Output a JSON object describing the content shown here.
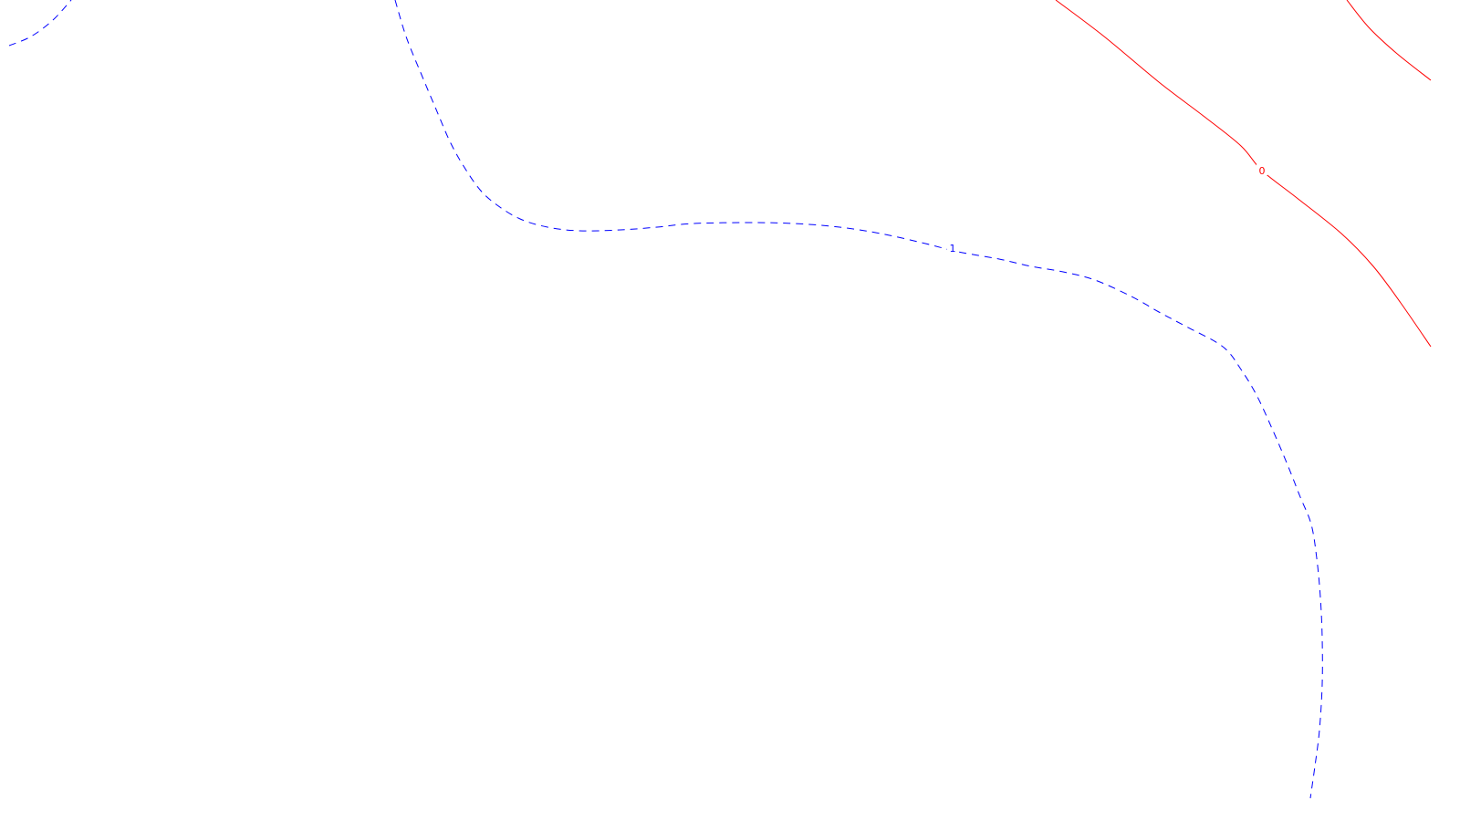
{
  "chart_data": {
    "type": "contour",
    "title": "",
    "xlabel": "",
    "ylabel": "",
    "grid": false,
    "legend": "none",
    "series": [
      {
        "level_label": "1",
        "color": "#0000ff",
        "line_style": "dashed",
        "paths": [
          [
            [
              10,
              50
            ],
            [
              34,
              40
            ],
            [
              58,
              22
            ],
            [
              78,
              0
            ]
          ],
          [
            [
              433,
              0
            ],
            [
              445,
              40
            ],
            [
              462,
              82
            ],
            [
              478,
              120
            ],
            [
              493,
              155
            ],
            [
              508,
              182
            ],
            [
              526,
              208
            ],
            [
              545,
              225
            ],
            [
              570,
              240
            ],
            [
              600,
              249
            ],
            [
              635,
              253
            ],
            [
              680,
              252
            ],
            [
              720,
              249
            ],
            [
              760,
              245
            ],
            [
              820,
              244
            ],
            [
              870,
              245
            ],
            [
              920,
              249
            ],
            [
              965,
              256
            ],
            [
              1010,
              266
            ],
            [
              1050,
              276
            ],
            [
              1095,
              284
            ],
            [
              1130,
              292
            ],
            [
              1165,
              298
            ],
            [
              1200,
              307
            ],
            [
              1240,
              325
            ],
            [
              1270,
              342
            ],
            [
              1300,
              358
            ],
            [
              1340,
              380
            ],
            [
              1360,
              405
            ],
            [
              1378,
              435
            ],
            [
              1395,
              472
            ],
            [
              1412,
              512
            ],
            [
              1425,
              545
            ],
            [
              1437,
              575
            ],
            [
              1443,
              612
            ],
            [
              1447,
              655
            ],
            [
              1449,
              700
            ],
            [
              1449,
              750
            ],
            [
              1446,
              800
            ],
            [
              1441,
              840
            ],
            [
              1436,
              875
            ]
          ]
        ]
      },
      {
        "level_label": "0",
        "color": "#ff0000",
        "line_style": "solid",
        "paths": [
          [
            [
              1157,
              0
            ],
            [
              1210,
              40
            ],
            [
              1270,
              90
            ],
            [
              1320,
              128
            ],
            [
              1360,
              160
            ],
            [
              1383,
              187
            ],
            [
              1420,
              216
            ],
            [
              1470,
              256
            ],
            [
              1505,
              292
            ],
            [
              1535,
              332
            ],
            [
              1568,
              380
            ]
          ],
          [
            [
              1476,
              0
            ],
            [
              1500,
              30
            ],
            [
              1530,
              58
            ],
            [
              1568,
              88
            ]
          ]
        ]
      }
    ],
    "labels": [
      {
        "text": "1",
        "color": "#0000ff",
        "x": 1044,
        "y": 272
      },
      {
        "text": "0",
        "color": "#ff0000",
        "x": 1383,
        "y": 187
      }
    ]
  }
}
